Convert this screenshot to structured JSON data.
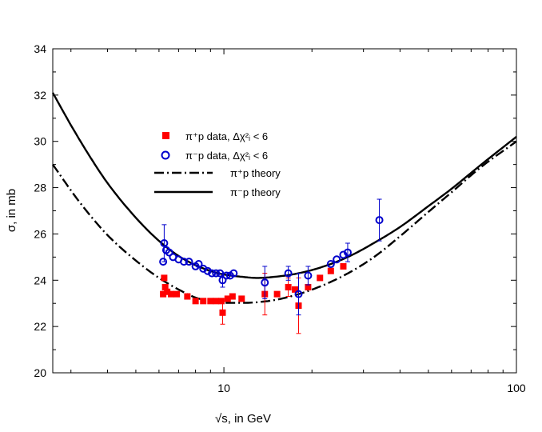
{
  "chart_data": {
    "type": "scatter",
    "title": "",
    "xlabel": "√s, in GeV",
    "ylabel": "σ, in mb",
    "xscale": "log",
    "xlim": [
      2.6,
      100
    ],
    "ylim": [
      20,
      34
    ],
    "x_ticks": [
      10,
      100
    ],
    "y_ticks": [
      20,
      22,
      24,
      26,
      28,
      30,
      32,
      34
    ],
    "legend_position": "upper-left",
    "legend": [
      {
        "label": "π⁺p data,   Δχ²ᵢ < 6",
        "marker": "square",
        "color": "#ff0000"
      },
      {
        "label": "π⁻p data,   Δχ²ᵢ < 6",
        "marker": "circle",
        "color": "#0000cc"
      },
      {
        "label": "π⁺p theory",
        "style": "dash-dot",
        "color": "#000000"
      },
      {
        "label": "π⁻p theory",
        "style": "solid",
        "color": "#000000"
      }
    ],
    "series": [
      {
        "name": "pi+p data",
        "marker": "square",
        "color": "#ff0000",
        "points": [
          {
            "x": 6.2,
            "y": 23.4
          },
          {
            "x": 6.25,
            "y": 24.1
          },
          {
            "x": 6.3,
            "y": 23.7
          },
          {
            "x": 6.4,
            "y": 23.5
          },
          {
            "x": 6.6,
            "y": 23.4
          },
          {
            "x": 6.9,
            "y": 23.4
          },
          {
            "x": 7.5,
            "y": 23.3
          },
          {
            "x": 8.0,
            "y": 23.1
          },
          {
            "x": 8.5,
            "y": 23.1
          },
          {
            "x": 9.0,
            "y": 23.1
          },
          {
            "x": 9.4,
            "y": 23.1
          },
          {
            "x": 9.8,
            "y": 23.1
          },
          {
            "x": 9.9,
            "y": 22.6,
            "err": 0.5
          },
          {
            "x": 10.3,
            "y": 23.2
          },
          {
            "x": 10.7,
            "y": 23.3
          },
          {
            "x": 11.5,
            "y": 23.2
          },
          {
            "x": 13.8,
            "y": 23.4,
            "err": 0.9
          },
          {
            "x": 15.2,
            "y": 23.4
          },
          {
            "x": 16.6,
            "y": 23.7,
            "err": 0.4
          },
          {
            "x": 17.5,
            "y": 23.6
          },
          {
            "x": 18.0,
            "y": 22.9,
            "err": 1.2
          },
          {
            "x": 19.4,
            "y": 23.7
          },
          {
            "x": 21.3,
            "y": 24.1
          },
          {
            "x": 23.2,
            "y": 24.4
          },
          {
            "x": 25.6,
            "y": 24.6
          }
        ]
      },
      {
        "name": "pi-p data",
        "marker": "circle",
        "color": "#0000cc",
        "points": [
          {
            "x": 6.2,
            "y": 24.8
          },
          {
            "x": 6.25,
            "y": 25.6,
            "err": 0.8
          },
          {
            "x": 6.35,
            "y": 25.3
          },
          {
            "x": 6.5,
            "y": 25.2
          },
          {
            "x": 6.7,
            "y": 25.0
          },
          {
            "x": 7.0,
            "y": 24.9
          },
          {
            "x": 7.3,
            "y": 24.8
          },
          {
            "x": 7.6,
            "y": 24.8
          },
          {
            "x": 8.0,
            "y": 24.6
          },
          {
            "x": 8.2,
            "y": 24.7
          },
          {
            "x": 8.5,
            "y": 24.5
          },
          {
            "x": 8.8,
            "y": 24.4
          },
          {
            "x": 9.1,
            "y": 24.3
          },
          {
            "x": 9.4,
            "y": 24.3
          },
          {
            "x": 9.7,
            "y": 24.3
          },
          {
            "x": 9.9,
            "y": 24.0,
            "err": 0.3
          },
          {
            "x": 10.2,
            "y": 24.2
          },
          {
            "x": 10.5,
            "y": 24.2
          },
          {
            "x": 10.8,
            "y": 24.3
          },
          {
            "x": 13.8,
            "y": 23.9,
            "err": 0.7
          },
          {
            "x": 16.6,
            "y": 24.3,
            "err": 0.3
          },
          {
            "x": 18.0,
            "y": 23.4,
            "err": 0.9
          },
          {
            "x": 19.4,
            "y": 24.2,
            "err": 0.4
          },
          {
            "x": 23.2,
            "y": 24.7
          },
          {
            "x": 24.3,
            "y": 24.9
          },
          {
            "x": 25.6,
            "y": 25.1
          },
          {
            "x": 26.5,
            "y": 25.2,
            "err": 0.4
          },
          {
            "x": 34.0,
            "y": 26.6,
            "err": 0.9
          }
        ]
      },
      {
        "name": "pi+p theory",
        "style": "dash-dot",
        "color": "#000000",
        "points": [
          {
            "x": 2.6,
            "y": 29.0
          },
          {
            "x": 3.2,
            "y": 27.4
          },
          {
            "x": 4.0,
            "y": 25.95
          },
          {
            "x": 5.0,
            "y": 24.85
          },
          {
            "x": 6.0,
            "y": 24.1
          },
          {
            "x": 7.0,
            "y": 23.6
          },
          {
            "x": 8.0,
            "y": 23.25
          },
          {
            "x": 9.0,
            "y": 23.1
          },
          {
            "x": 10.0,
            "y": 23.02
          },
          {
            "x": 11.5,
            "y": 23.02
          },
          {
            "x": 13.0,
            "y": 23.05
          },
          {
            "x": 15.0,
            "y": 23.15
          },
          {
            "x": 18.0,
            "y": 23.4
          },
          {
            "x": 22.0,
            "y": 23.8
          },
          {
            "x": 27.0,
            "y": 24.35
          },
          {
            "x": 33.0,
            "y": 25.05
          },
          {
            "x": 40.0,
            "y": 25.9
          },
          {
            "x": 50.0,
            "y": 26.95
          },
          {
            "x": 60.0,
            "y": 27.8
          },
          {
            "x": 75.0,
            "y": 28.85
          },
          {
            "x": 100.0,
            "y": 30.0
          }
        ]
      },
      {
        "name": "pi-p theory",
        "style": "solid",
        "color": "#000000",
        "points": [
          {
            "x": 2.6,
            "y": 32.1
          },
          {
            "x": 3.0,
            "y": 30.7
          },
          {
            "x": 3.5,
            "y": 29.3
          },
          {
            "x": 4.0,
            "y": 28.2
          },
          {
            "x": 5.0,
            "y": 26.7
          },
          {
            "x": 6.0,
            "y": 25.7
          },
          {
            "x": 7.0,
            "y": 25.05
          },
          {
            "x": 8.0,
            "y": 24.65
          },
          {
            "x": 9.0,
            "y": 24.4
          },
          {
            "x": 10.0,
            "y": 24.25
          },
          {
            "x": 11.5,
            "y": 24.15
          },
          {
            "x": 13.0,
            "y": 24.1
          },
          {
            "x": 15.0,
            "y": 24.15
          },
          {
            "x": 18.0,
            "y": 24.3
          },
          {
            "x": 22.0,
            "y": 24.6
          },
          {
            "x": 27.0,
            "y": 25.05
          },
          {
            "x": 33.0,
            "y": 25.65
          },
          {
            "x": 40.0,
            "y": 26.3
          },
          {
            "x": 50.0,
            "y": 27.2
          },
          {
            "x": 60.0,
            "y": 27.95
          },
          {
            "x": 75.0,
            "y": 28.95
          },
          {
            "x": 100.0,
            "y": 30.2
          }
        ]
      }
    ]
  }
}
